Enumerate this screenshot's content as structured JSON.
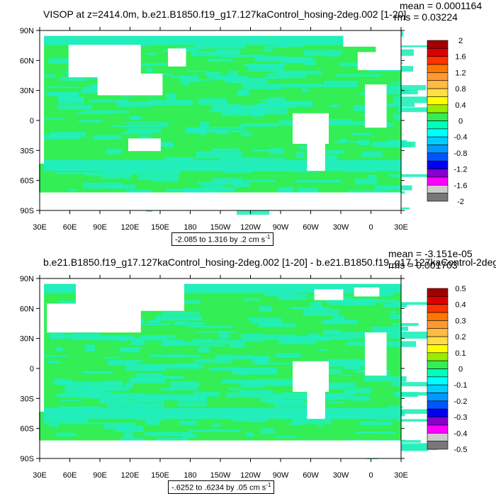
{
  "colors": {
    "ocean_main": "#33ee55",
    "ocean_alt": "#22eebb",
    "land": "#ffffff",
    "frame": "#000000"
  },
  "panels": [
    {
      "title": "VISOP at z=2414.0m, b.e21.B1850.f19_g17.127kaControl_hosing-2deg.002 [1-20]",
      "mean_text": "mean = 0.0001164",
      "rms_text": "rms = 0.03224",
      "range_text": "-2.085 to 1.316 by .2 cm s",
      "range_exp": "-1",
      "lat_labels": [
        "90N",
        "60N",
        "30N",
        "0",
        "30S",
        "60S",
        "90S"
      ],
      "lon_labels": [
        "30E",
        "60E",
        "90E",
        "120E",
        "150E",
        "180",
        "150W",
        "120W",
        "90W",
        "60W",
        "30W",
        "0",
        "30E"
      ],
      "colorbar_labels": [
        "2",
        "1.6",
        "1.2",
        "0.8",
        "0.4",
        "0",
        "-0.4",
        "-0.8",
        "-1.2",
        "-1.6",
        "-2"
      ]
    },
    {
      "title": "b.e21.B1850.f19_g17.127kaControl_hosing-2deg.002 [1-20] - b.e21.B1850.f19_g17.127kaControl-2deg.",
      "mean_text": "mean = -3.151e-05",
      "rms_text": "rms = 0.001703",
      "range_text": "-.6252 to .6234 by .05 cm s",
      "range_exp": "-1",
      "lat_labels": [
        "90N",
        "60N",
        "30N",
        "0",
        "30S",
        "60S",
        "90S"
      ],
      "lon_labels": [
        "30E",
        "60E",
        "90E",
        "120E",
        "150E",
        "180",
        "150W",
        "120W",
        "90W",
        "60W",
        "30W",
        "0",
        "30E"
      ],
      "colorbar_labels": [
        "0.5",
        "0.4",
        "0.3",
        "0.2",
        "0.1",
        "0",
        "-0.1",
        "-0.2",
        "-0.3",
        "-0.4",
        "-0.5"
      ]
    }
  ],
  "colorbar_colors": [
    "#a00000",
    "#dd0000",
    "#ff3300",
    "#ff7700",
    "#ff9933",
    "#ffbb44",
    "#ffdd44",
    "#ffff00",
    "#99ee00",
    "#33ee55",
    "#00ffbb",
    "#00ffff",
    "#00ccff",
    "#0099ff",
    "#0055ff",
    "#0000ee",
    "#8800cc",
    "#ff00ff",
    "#cccccc",
    "#777777"
  ]
}
